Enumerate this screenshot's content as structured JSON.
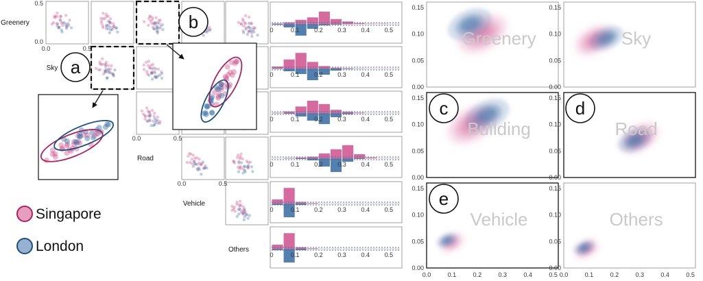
{
  "colors": {
    "singapore": "#cf4f8d",
    "singapore_edge": "#b0205f",
    "london": "#3f73a8",
    "london_edge": "#1d4e80",
    "panel_border": "#888888"
  },
  "legend": [
    {
      "name": "Singapore",
      "color": "#cf4f8d",
      "edge": "#b0205f"
    },
    {
      "name": "London",
      "color": "#3f73a8",
      "edge": "#1d4e80"
    }
  ],
  "callouts": {
    "a": "a",
    "b": "b",
    "c": "c",
    "d": "d",
    "e": "e"
  },
  "chart_data": [
    {
      "type": "scatter",
      "description_scope": "pairwise scatter matrix (lower triangle)",
      "variables": [
        "Greenery",
        "Sky",
        "Building",
        "Road",
        "Vehicle",
        "Others"
      ],
      "row_labels": [
        "Greenery",
        "Sky",
        "Road",
        "Vehicle",
        "Others"
      ],
      "tick_labels": {
        "x": [
          "0.0",
          "0.5"
        ],
        "y": [
          "0.0",
          "0.5"
        ]
      },
      "xlim": [
        0,
        0.5
      ],
      "ylim": [
        0,
        0.5
      ],
      "series": [
        {
          "name": "Singapore",
          "points": [
            [
              0.12,
              0.28
            ],
            [
              0.15,
              0.3
            ],
            [
              0.1,
              0.26
            ],
            [
              0.18,
              0.24
            ],
            [
              0.14,
              0.33
            ],
            [
              0.2,
              0.22
            ],
            [
              0.09,
              0.31
            ],
            [
              0.22,
              0.27
            ],
            [
              0.16,
              0.2
            ],
            [
              0.13,
              0.36
            ],
            [
              0.25,
              0.25
            ],
            [
              0.11,
              0.22
            ],
            [
              0.19,
              0.34
            ],
            [
              0.08,
              0.28
            ],
            [
              0.23,
              0.19
            ],
            [
              0.17,
              0.29
            ],
            [
              0.21,
              0.31
            ],
            [
              0.14,
              0.24
            ],
            [
              0.26,
              0.21
            ],
            [
              0.12,
              0.34
            ]
          ]
        },
        {
          "name": "London",
          "points": [
            [
              0.18,
              0.22
            ],
            [
              0.21,
              0.2
            ],
            [
              0.16,
              0.24
            ],
            [
              0.24,
              0.18
            ],
            [
              0.19,
              0.17
            ],
            [
              0.22,
              0.25
            ],
            [
              0.15,
              0.19
            ],
            [
              0.26,
              0.22
            ],
            [
              0.2,
              0.15
            ],
            [
              0.17,
              0.27
            ],
            [
              0.23,
              0.21
            ],
            [
              0.28,
              0.17
            ]
          ]
        }
      ]
    },
    {
      "type": "bar",
      "description_scope": "mirrored histograms, Singapore above baseline, London below",
      "rows": [
        "Greenery",
        "Sky",
        "Building",
        "Road",
        "Vehicle",
        "Others"
      ],
      "bin_width": 0.05,
      "bins": [
        0.0,
        0.05,
        0.1,
        0.15,
        0.2,
        0.25,
        0.3,
        0.35,
        0.4,
        0.45,
        0.5
      ],
      "xlim": [
        0,
        0.55
      ],
      "x_ticks": [
        "0",
        "0.1",
        "0.2",
        "0.3",
        "0.4",
        "0.5"
      ],
      "series": [
        {
          "name": "Singapore",
          "rows": [
            [
              0.03,
              0.1,
              0.25,
              0.4,
              0.75,
              0.3,
              0.15,
              0.05,
              0.02,
              0.02,
              0.01
            ],
            [
              0.12,
              0.55,
              0.95,
              0.4,
              0.15,
              0.05,
              0.02,
              0.01,
              0.01,
              0.01,
              0.01
            ],
            [
              0.02,
              0.1,
              0.4,
              0.75,
              0.55,
              0.2,
              0.08,
              0.03,
              0.01,
              0.01,
              0.01
            ],
            [
              0.01,
              0.02,
              0.05,
              0.1,
              0.3,
              0.55,
              0.8,
              0.25,
              0.05,
              0.01,
              0.01
            ],
            [
              0.25,
              0.95,
              0.1,
              0.03,
              0.01,
              0.01,
              0.01,
              0.01,
              0.01,
              0.01,
              0.01
            ],
            [
              0.25,
              0.95,
              0.1,
              0.03,
              0.01,
              0.01,
              0.01,
              0.01,
              0.01,
              0.01,
              0.01
            ]
          ]
        },
        {
          "name": "London",
          "rows": [
            [
              0.05,
              0.25,
              0.85,
              0.35,
              0.1,
              0.05,
              0.02,
              0.01,
              0.01,
              0.01,
              0.01
            ],
            [
              0.03,
              0.2,
              0.4,
              0.85,
              0.45,
              0.15,
              0.04,
              0.02,
              0.01,
              0.01,
              0.01
            ],
            [
              0.02,
              0.05,
              0.25,
              0.55,
              0.8,
              0.3,
              0.08,
              0.02,
              0.01,
              0.01,
              0.01
            ],
            [
              0.01,
              0.02,
              0.05,
              0.15,
              0.6,
              1.0,
              0.25,
              0.05,
              0.01,
              0.01,
              0.01
            ],
            [
              0.1,
              1.0,
              0.1,
              0.02,
              0.01,
              0.01,
              0.01,
              0.01,
              0.01,
              0.01,
              0.01
            ],
            [
              0.1,
              1.0,
              0.1,
              0.02,
              0.01,
              0.01,
              0.01,
              0.01,
              0.01,
              0.01,
              0.01
            ]
          ]
        }
      ]
    },
    {
      "type": "scatter",
      "description_scope": "kernel density panels per class",
      "panels": [
        "Greenery",
        "Sky",
        "Building",
        "Road",
        "Vehicle",
        "Others"
      ],
      "xlim": [
        0,
        0.52
      ],
      "ylim": [
        0,
        0.16
      ],
      "x_ticks": [
        "0.0",
        "0.1",
        "0.2",
        "0.3",
        "0.4",
        "0.5"
      ],
      "y_ticks": [
        "0.00",
        "0.05",
        "0.10",
        "0.15"
      ],
      "series": [
        {
          "name": "Singapore",
          "centers": [
            [
              0.22,
              0.1
            ],
            [
              0.12,
              0.088
            ],
            [
              0.18,
              0.1
            ],
            [
              0.3,
              0.075
            ],
            [
              0.1,
              0.048
            ],
            [
              0.09,
              0.036
            ]
          ]
        },
        {
          "name": "London",
          "centers": [
            [
              0.17,
              0.118
            ],
            [
              0.17,
              0.092
            ],
            [
              0.24,
              0.118
            ],
            [
              0.28,
              0.07
            ],
            [
              0.08,
              0.052
            ],
            [
              0.08,
              0.038
            ]
          ]
        }
      ]
    }
  ]
}
